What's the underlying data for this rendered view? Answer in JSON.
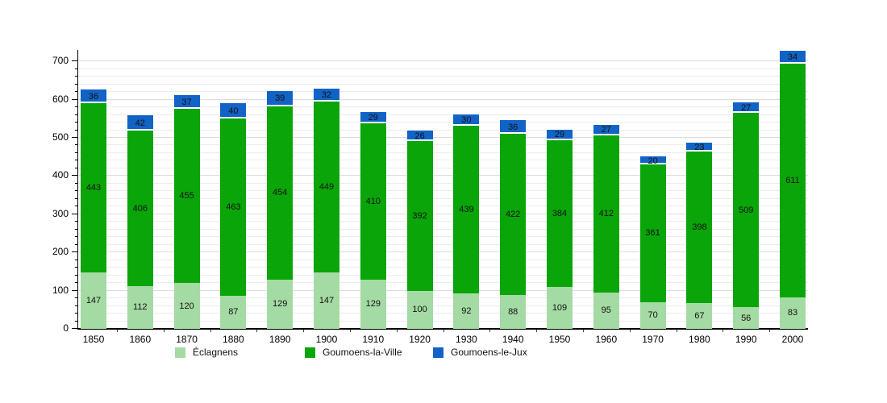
{
  "chart_data": {
    "type": "bar",
    "stacked": true,
    "title": "",
    "xlabel": "",
    "ylabel": "",
    "categories": [
      "1850",
      "1860",
      "1870",
      "1880",
      "1890",
      "1900",
      "1910",
      "1920",
      "1930",
      "1940",
      "1950",
      "1960",
      "1970",
      "1980",
      "1990",
      "2000"
    ],
    "series": [
      {
        "name": "Éclagnens",
        "key": "eclagnens",
        "color": "#a4dba4",
        "values": [
          147,
          112,
          120,
          87,
          129,
          147,
          129,
          100,
          92,
          88,
          109,
          95,
          70,
          67,
          56,
          83
        ]
      },
      {
        "name": "Goumoens-la-Ville",
        "key": "goumoens-la-ville",
        "color": "#09a509",
        "values": [
          443,
          406,
          455,
          463,
          454,
          449,
          410,
          392,
          439,
          422,
          384,
          412,
          361,
          398,
          509,
          611
        ]
      },
      {
        "name": "Goumoens-le-Jux",
        "key": "goumoens-le-jux",
        "color": "#1263c6",
        "values": [
          36,
          42,
          37,
          40,
          39,
          32,
          29,
          26,
          30,
          36,
          29,
          27,
          20,
          23,
          27,
          34
        ]
      }
    ],
    "ylim": [
      0,
      730
    ],
    "y_major_step": 100,
    "y_minor_step": 20,
    "grid": true,
    "legend_position": "bottom",
    "value_labels": true
  }
}
